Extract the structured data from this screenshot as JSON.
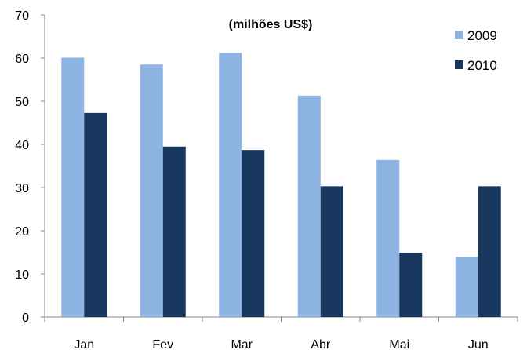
{
  "chart_data": {
    "type": "bar",
    "title": "",
    "subtitle": "(milhões US$)",
    "categories": [
      "Jan",
      "Fev",
      "Mar",
      "Abr",
      "Mai",
      "Jun"
    ],
    "series": [
      {
        "name": "2009",
        "color": "#8EB4E3",
        "values": [
          60.1,
          58.5,
          61.2,
          51.3,
          36.4,
          14.0
        ]
      },
      {
        "name": "2010",
        "color": "#17375E",
        "values": [
          47.3,
          39.5,
          38.7,
          30.3,
          14.9,
          30.3
        ]
      }
    ],
    "yticks": [
      "0",
      "10",
      "20",
      "30",
      "40",
      "50",
      "60",
      "70"
    ],
    "ylim": [
      0,
      70
    ],
    "xlabel": "",
    "ylabel": "",
    "grid": false,
    "legend_position": "top-right"
  }
}
